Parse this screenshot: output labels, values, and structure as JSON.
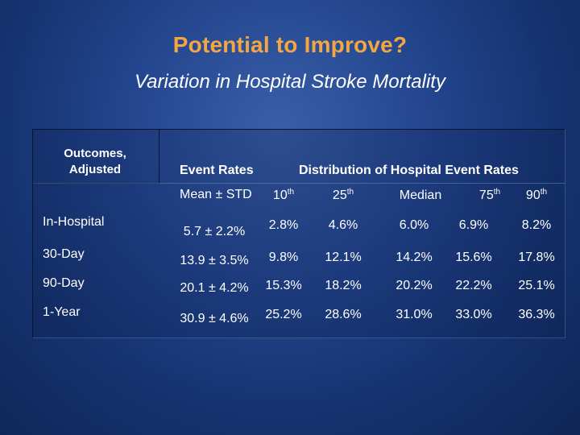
{
  "title": "Potential to Improve?",
  "subtitle": "Variation in Hospital Stroke Mortality",
  "table": {
    "outcomes_header_line1": "Outcomes,",
    "outcomes_header_line2": "Adjusted",
    "event_rates_header": "Event Rates",
    "distribution_header": "Distribution of Hospital Event Rates",
    "event_rates_subheader": "Mean ± STD",
    "percentiles": [
      {
        "num": "10",
        "sup": "th"
      },
      {
        "num": "25",
        "sup": "th"
      },
      {
        "num": "Median",
        "sup": ""
      },
      {
        "num": "75",
        "sup": "th"
      },
      {
        "num": "90",
        "sup": "th"
      }
    ],
    "rows": [
      {
        "label": "In-Hospital",
        "event_rate": "5.7 ± 2.2%",
        "values": [
          "2.8%",
          "4.6%",
          "6.0%",
          "6.9%",
          "8.2%"
        ]
      },
      {
        "label": "30-Day",
        "event_rate": "13.9 ± 3.5%",
        "values": [
          "9.8%",
          "12.1%",
          "14.2%",
          "15.6%",
          "17.8%"
        ]
      },
      {
        "label": "90-Day",
        "event_rate": "20.1 ± 4.2%",
        "values": [
          "15.3%",
          "18.2%",
          "20.2%",
          "22.2%",
          "25.1%"
        ]
      },
      {
        "label": "1-Year",
        "event_rate": "30.9 ± 4.6%",
        "values": [
          "25.2%",
          "28.6%",
          "31.0%",
          "33.0%",
          "36.3%"
        ]
      }
    ]
  }
}
